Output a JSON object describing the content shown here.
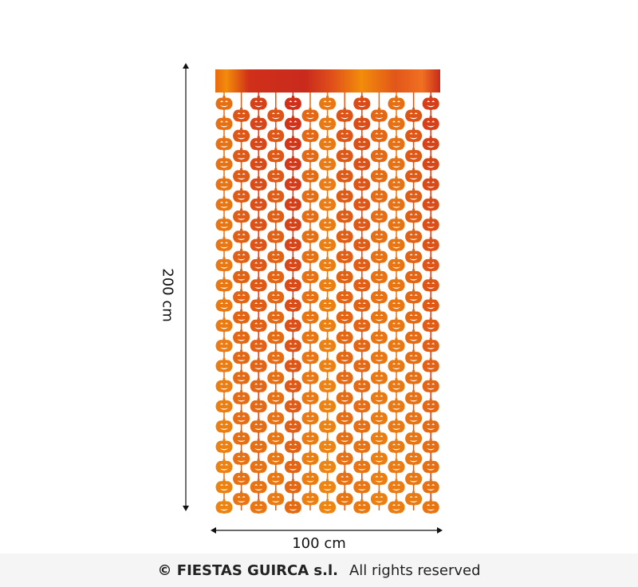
{
  "product": {
    "name": "Pumpkin foil curtain",
    "strand_count": 13,
    "colors": {
      "orange": "#f08a10",
      "red": "#d0301a",
      "bar_light": "#f28c0a",
      "bar_dark": "#c92a1c"
    }
  },
  "dimensions": {
    "height_label": "200  cm",
    "width_label": "100 cm"
  },
  "footer": {
    "copyright": "© FIESTAS GUIRCA s.l.",
    "rights": "All rights reserved"
  }
}
